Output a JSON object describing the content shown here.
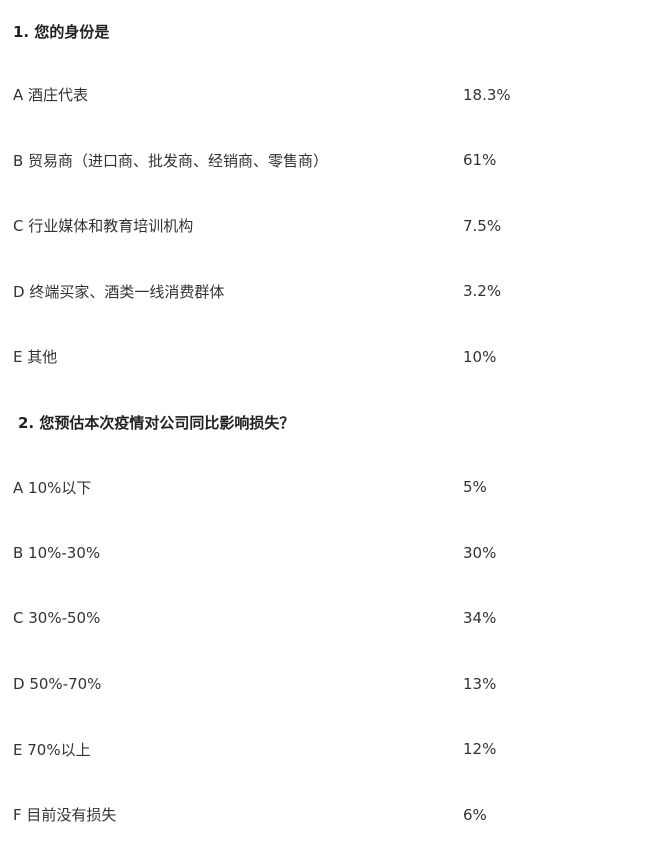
{
  "questions": [
    {
      "title": "1. 您的身份是",
      "options": [
        {
          "label": "A 酒庄代表",
          "value": "18.3%"
        },
        {
          "label": "B 贸易商（进口商、批发商、经销商、零售商）",
          "value": "61%"
        },
        {
          "label": "C 行业媒体和教育培训机构",
          "value": "7.5%"
        },
        {
          "label": "D 终端买家、酒类一线消费群体",
          "value": "3.2%"
        },
        {
          "label": "E 其他",
          "value": "10%"
        }
      ]
    },
    {
      "title": "2. 您预估本次疫情对公司同比影响损失？",
      "options": [
        {
          "label": "A 10%以下",
          "value": "5%"
        },
        {
          "label": "B 10%-30%",
          "value": "30%"
        },
        {
          "label": "C 30%-50%",
          "value": "34%"
        },
        {
          "label": "D 50%-70%",
          "value": "13%"
        },
        {
          "label": "E 70%以上",
          "value": "12%"
        },
        {
          "label": "F 目前没有损失",
          "value": "6%"
        }
      ]
    }
  ]
}
